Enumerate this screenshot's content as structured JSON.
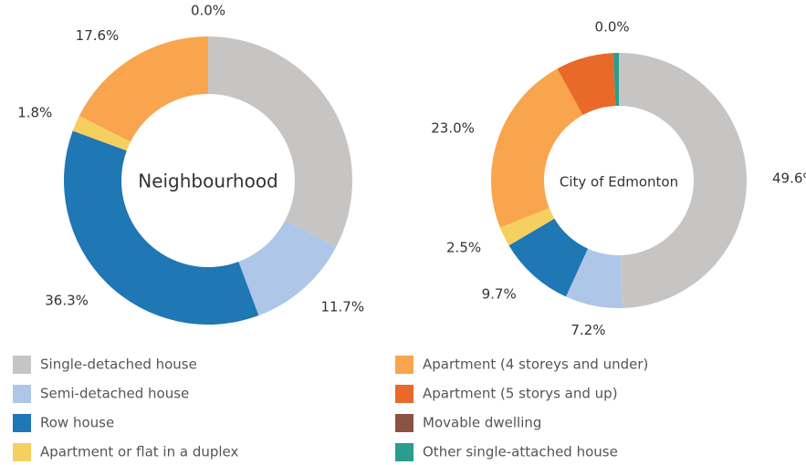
{
  "chart_data": [
    {
      "type": "pie",
      "title": "Neighbourhood",
      "categories": [
        "Single-detached house",
        "Semi-detached house",
        "Row house",
        "Apartment or flat in a duplex",
        "Apartment (4 storeys and under)",
        "Apartment (5 storys and up)",
        "Movable dwelling",
        "Other single-attached house"
      ],
      "colors": [
        "#c7c5c3",
        "#aec7e8",
        "#1f77b4",
        "#f5d05e",
        "#f8a54d",
        "#e8692a",
        "#8c5243",
        "#2a9d8f"
      ],
      "values": [
        32.6,
        11.7,
        36.3,
        1.8,
        17.6,
        0,
        0,
        0
      ],
      "value_labels": [
        null,
        "11.7%",
        "36.3%",
        "1.8%",
        "17.6%",
        null,
        "0.0%",
        null
      ]
    },
    {
      "type": "pie",
      "title": "City of Edmonton",
      "values": [
        49.6,
        7.2,
        9.7,
        2.5,
        23.0,
        7.3,
        0,
        0.7
      ],
      "value_labels": [
        "49.6%",
        "7.2%",
        "9.7%",
        "2.5%",
        "23.0%",
        null,
        "0.0%",
        null
      ]
    }
  ]
}
